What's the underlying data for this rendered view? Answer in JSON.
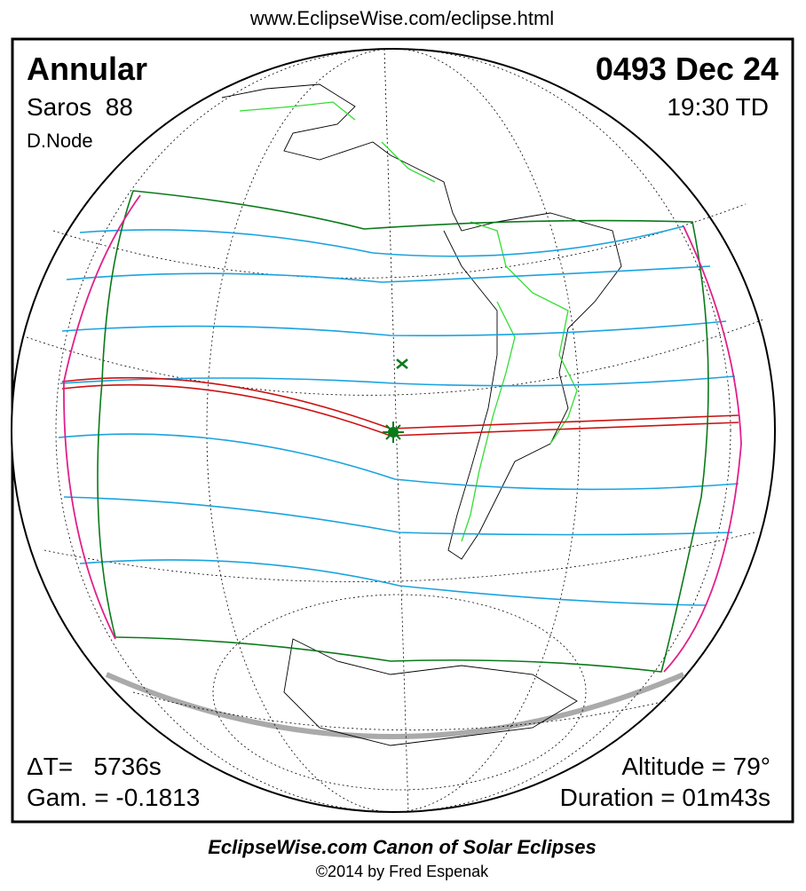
{
  "header": {
    "url": "www.EclipseWise.com/eclipse.html"
  },
  "panel": {
    "top_left": {
      "type": "Annular",
      "saros": "Saros  88",
      "node": "D.Node"
    },
    "top_right": {
      "date": "0493 Dec 24",
      "time": "19:30 TD"
    },
    "bottom_left": {
      "delta_t": "ΔT=   5736s",
      "gamma": "Gam. = -0.1813"
    },
    "bottom_right": {
      "altitude": "Altitude = 79°",
      "duration": "Duration = 01m43s"
    }
  },
  "footer": {
    "title": "EclipseWise.com Canon of Solar Eclipses",
    "credit": "©2014 by Fred Espenak"
  }
}
